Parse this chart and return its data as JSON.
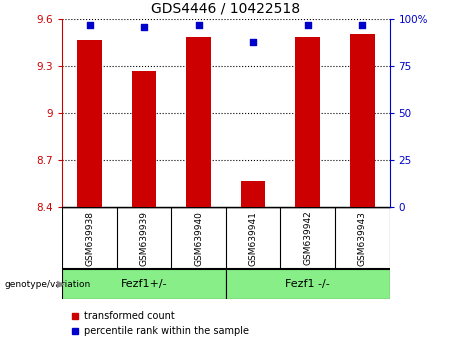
{
  "title": "GDS4446 / 10422518",
  "samples": [
    "GSM639938",
    "GSM639939",
    "GSM639940",
    "GSM639941",
    "GSM639942",
    "GSM639943"
  ],
  "transformed_counts": [
    9.47,
    9.27,
    9.49,
    8.57,
    9.49,
    9.51
  ],
  "percentile_ranks": [
    97,
    96,
    97,
    88,
    97,
    97
  ],
  "ylim_left": [
    8.4,
    9.6
  ],
  "ylim_right": [
    0,
    100
  ],
  "yticks_left": [
    8.4,
    8.7,
    9.0,
    9.3,
    9.6
  ],
  "yticks_right": [
    0,
    25,
    50,
    75,
    100
  ],
  "ytick_labels_left": [
    "8.4",
    "8.7",
    "9",
    "9.3",
    "9.6"
  ],
  "ytick_labels_right": [
    "0",
    "25",
    "50",
    "75",
    "100%"
  ],
  "bar_color": "#cc0000",
  "dot_color": "#0000cc",
  "group1_label": "Fezf1+/-",
  "group2_label": "Fezf1 -/-",
  "group1_indices": [
    0,
    1,
    2
  ],
  "group2_indices": [
    3,
    4,
    5
  ],
  "group_label_prefix": "genotype/variation",
  "group_bg_color": "#88ee88",
  "sample_bg_color": "#cccccc",
  "legend_red_label": "transformed count",
  "legend_blue_label": "percentile rank within the sample",
  "bar_width": 0.45,
  "dot_size": 25
}
